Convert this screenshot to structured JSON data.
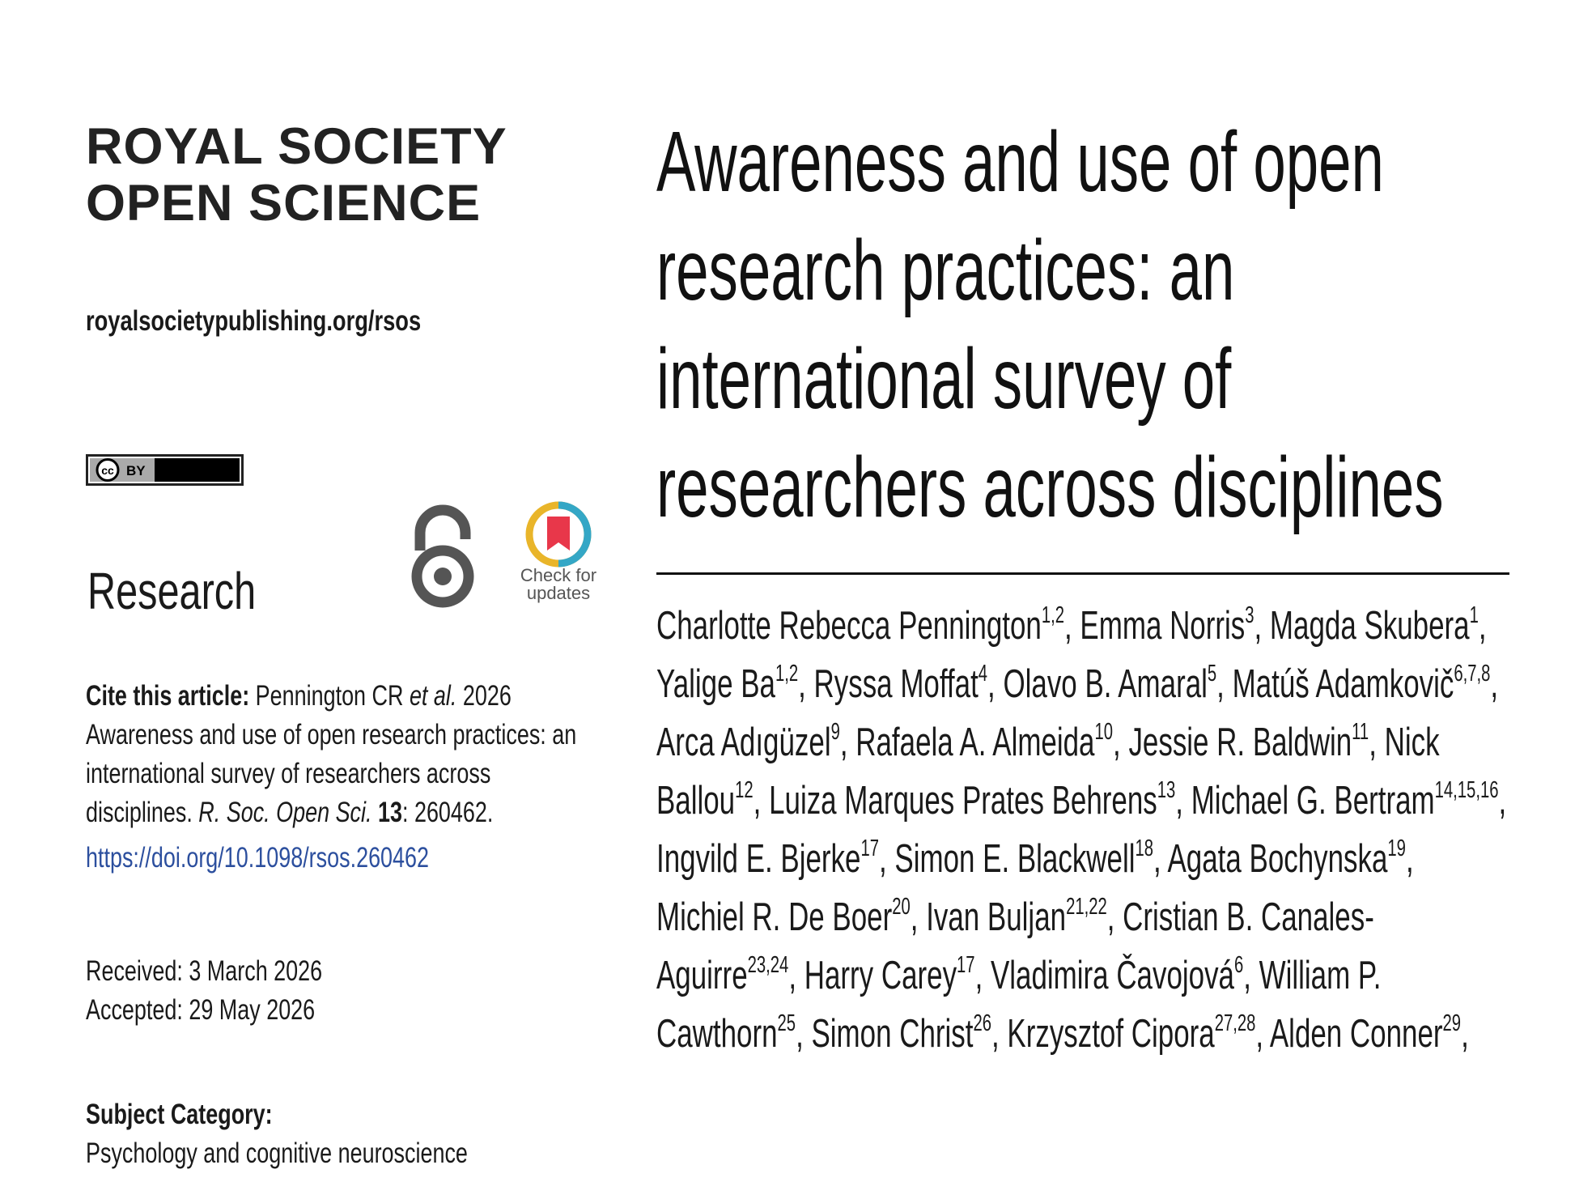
{
  "journal": [
    "ROYAL SOCIETY",
    "OPEN SCIENCE"
  ],
  "url": "royalsocietypublishing.org/rsos",
  "license": {
    "icon": "cc",
    "text": "BY"
  },
  "section": "Research",
  "check_for_updates": "Check for updates",
  "cite": {
    "label": "Cite this article:",
    "runs": [
      {
        "text": " Pennington CR ",
        "style": "normal"
      },
      {
        "text": "et al.",
        "style": "italic"
      },
      {
        "text": " 2026 Awareness and use of open research practices: an international survey of researchers across disciplines. ",
        "style": "normal"
      },
      {
        "text": "R. Soc. Open Sci.",
        "style": "italic"
      },
      {
        "text": " ",
        "style": "normal"
      },
      {
        "text": "13",
        "style": "bold"
      },
      {
        "text": ": 260462.",
        "style": "normal"
      }
    ],
    "doi": "https://doi.org/10.1098/rsos.260462"
  },
  "received": "Received: 3 March 2026",
  "accepted": "Accepted: 29 May 2026",
  "subject": {
    "label": "Subject Category:",
    "value": "Psychology and cognitive neuroscience"
  },
  "title_lines": [
    "Awareness and use of open",
    "research practices: an",
    "international survey of",
    "researchers across disciplines"
  ],
  "author_separator": ", ",
  "authors": [
    {
      "name": "Charlotte Rebecca Pennington",
      "affil": "1,2"
    },
    {
      "name": "Emma Norris",
      "affil": "3"
    },
    {
      "name": "Magda Skubera",
      "affil": "1"
    },
    {
      "name": "Yalige Ba",
      "affil": "1,2"
    },
    {
      "name": "Ryssa Moffat",
      "affil": "4"
    },
    {
      "name": "Olavo B. Amaral",
      "affil": "5"
    },
    {
      "name": "Matúš Adamkovič",
      "affil": "6,7,8"
    },
    {
      "name": "Arca Adıgüzel",
      "affil": "9"
    },
    {
      "name": "Rafaela A. Almeida",
      "affil": "10"
    },
    {
      "name": "Jessie R. Baldwin",
      "affil": "11"
    },
    {
      "name": "Nick Ballou",
      "affil": "12"
    },
    {
      "name": "Luiza Marques Prates Behrens",
      "affil": "13"
    },
    {
      "name": "Michael G. Bertram",
      "affil": "14,15,16"
    },
    {
      "name": "Ingvild E. Bjerke",
      "affil": "17"
    },
    {
      "name": "Simon E. Blackwell",
      "affil": "18"
    },
    {
      "name": "Agata Bochynska",
      "affil": "19"
    },
    {
      "name": "Michiel R. De Boer",
      "affil": "20"
    },
    {
      "name": "Ivan Buljan",
      "affil": "21,22"
    },
    {
      "name": "Cristian B. Canales-Aguirre",
      "affil": "23,24"
    },
    {
      "name": "Harry Carey",
      "affil": "17"
    },
    {
      "name": "Vladimira Čavojová",
      "affil": "6"
    },
    {
      "name": "William P. Cawthorn",
      "affil": "25"
    },
    {
      "name": "Simon Christ",
      "affil": "26"
    },
    {
      "name": "Krzysztof Cipora",
      "affil": "27,28"
    },
    {
      "name": "Alden Conner",
      "affil": "29"
    }
  ]
}
